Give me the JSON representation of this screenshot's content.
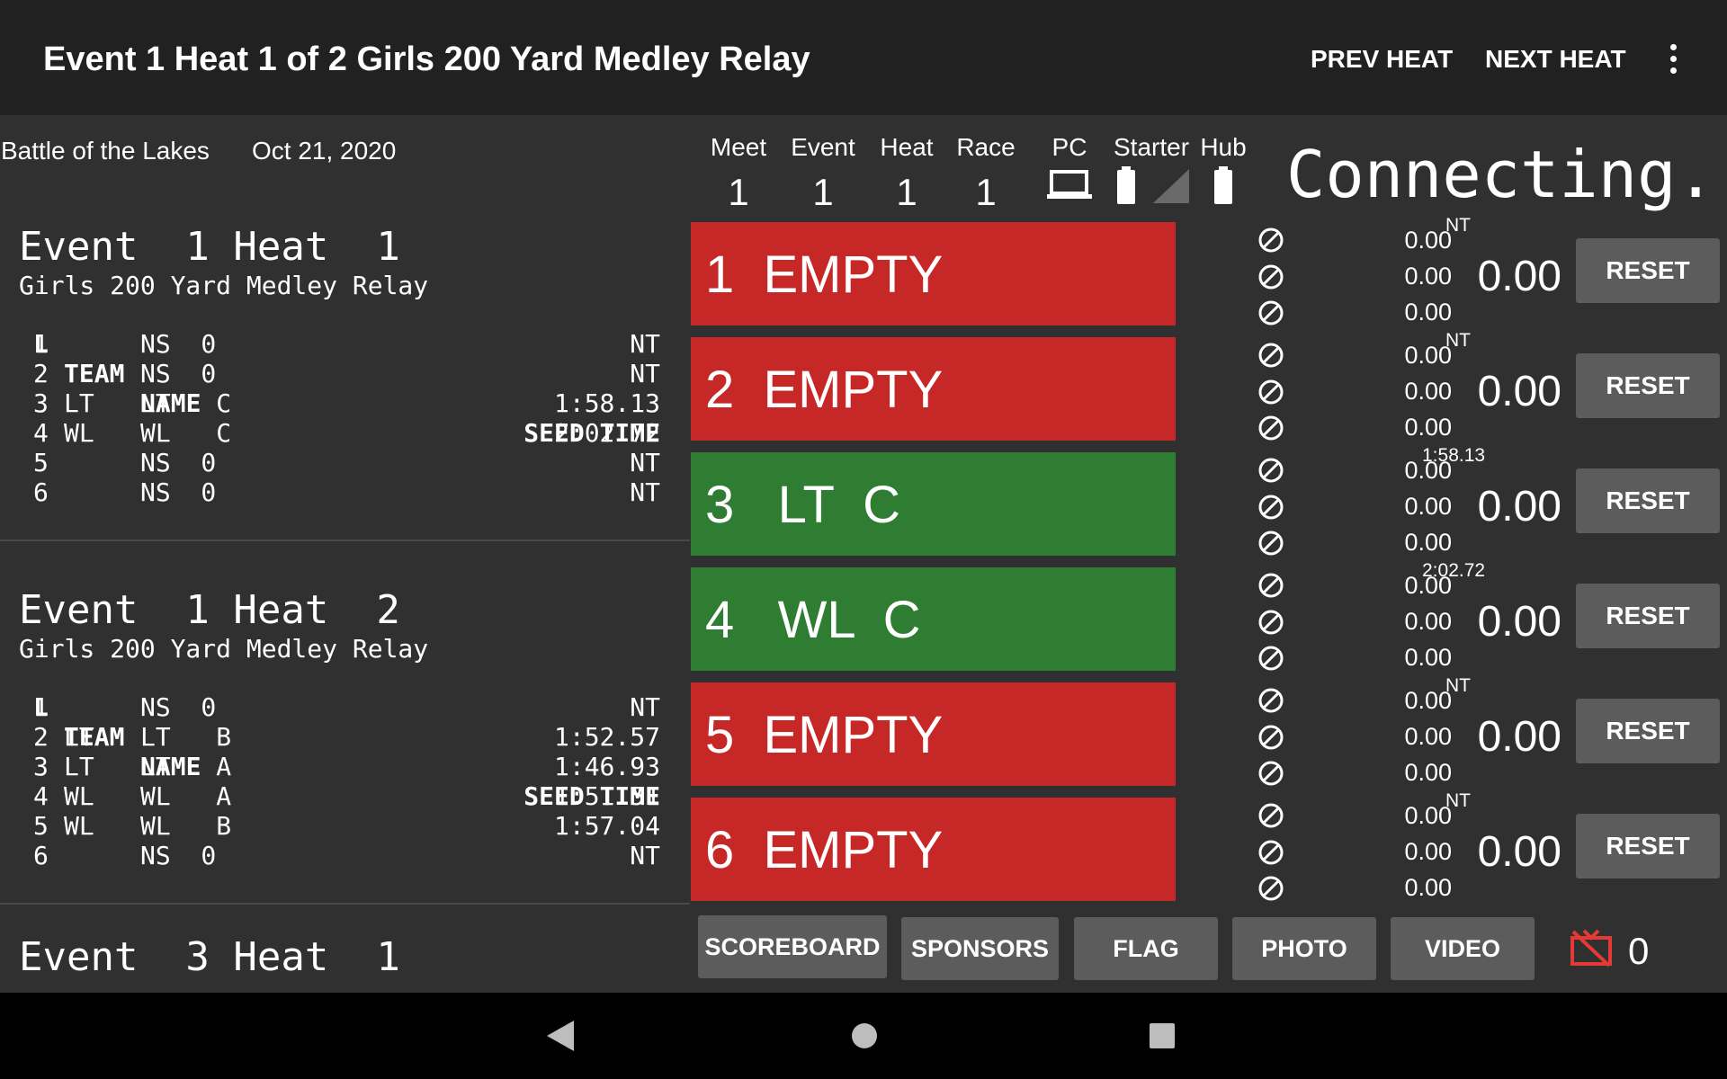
{
  "app": {
    "title": "Event 1 Heat 1 of 2 Girls 200 Yard Medley Relay",
    "prev_heat": "PREV HEAT",
    "next_heat": "NEXT HEAT",
    "more_icon": "more-vert-icon"
  },
  "meet": {
    "name": "Battle of the Lakes",
    "date": "Oct 21, 2020"
  },
  "status": {
    "columns": [
      {
        "label": "Meet",
        "value": "1"
      },
      {
        "label": "Event",
        "value": "1"
      },
      {
        "label": "Heat",
        "value": "1"
      },
      {
        "label": "Race",
        "value": "1"
      }
    ],
    "pc_label": "PC",
    "starter_label": "Starter",
    "hub_label": "Hub",
    "connection": "Connecting..."
  },
  "heats": [
    {
      "title": "Event  1 Heat  1",
      "subtitle": "Girls 200 Yard Medley Relay",
      "header": {
        "lane": "L",
        "team": "TEAM",
        "name": "NAME",
        "seed": "SEED TIME"
      },
      "rows": [
        {
          "lane": "1",
          "team": "",
          "name": "NS  0",
          "seed": "NT"
        },
        {
          "lane": "2",
          "team": "",
          "name": "NS  0",
          "seed": "NT"
        },
        {
          "lane": "3",
          "team": "LT",
          "name": "LT   C",
          "seed": "1:58.13"
        },
        {
          "lane": "4",
          "team": "WL",
          "name": "WL   C",
          "seed": "2:02.72"
        },
        {
          "lane": "5",
          "team": "",
          "name": "NS  0",
          "seed": "NT"
        },
        {
          "lane": "6",
          "team": "",
          "name": "NS  0",
          "seed": "NT"
        }
      ]
    },
    {
      "title": "Event  1 Heat  2",
      "subtitle": "Girls 200 Yard Medley Relay",
      "header": {
        "lane": "L",
        "team": "TEAM",
        "name": "NAME",
        "seed": "SEED TIME"
      },
      "rows": [
        {
          "lane": "1",
          "team": "",
          "name": "NS  0",
          "seed": "NT"
        },
        {
          "lane": "2",
          "team": "LT",
          "name": "LT   B",
          "seed": "1:52.57"
        },
        {
          "lane": "3",
          "team": "LT",
          "name": "LT   A",
          "seed": "1:46.93"
        },
        {
          "lane": "4",
          "team": "WL",
          "name": "WL   A",
          "seed": "1:51.51"
        },
        {
          "lane": "5",
          "team": "WL",
          "name": "WL   B",
          "seed": "1:57.04"
        },
        {
          "lane": "6",
          "team": "",
          "name": "NS  0",
          "seed": "NT"
        }
      ]
    },
    {
      "title": "Event  3 Heat  1"
    }
  ],
  "lanes": [
    {
      "label": "1  EMPTY",
      "state": "empty",
      "splits": [
        "0.00",
        "0.00",
        "0.00"
      ],
      "seed": "NT",
      "time": "0.00",
      "reset": "RESET"
    },
    {
      "label": "2  EMPTY",
      "state": "empty",
      "splits": [
        "0.00",
        "0.00",
        "0.00"
      ],
      "seed": "NT",
      "time": "0.00",
      "reset": "RESET"
    },
    {
      "label": "3   LT  C",
      "state": "filled",
      "splits": [
        "0.00",
        "0.00",
        "0.00"
      ],
      "seed": "1:58.13",
      "time": "0.00",
      "reset": "RESET"
    },
    {
      "label": "4   WL  C",
      "state": "filled",
      "splits": [
        "0.00",
        "0.00",
        "0.00"
      ],
      "seed": "2:02.72",
      "time": "0.00",
      "reset": "RESET"
    },
    {
      "label": "5  EMPTY",
      "state": "empty",
      "splits": [
        "0.00",
        "0.00",
        "0.00"
      ],
      "seed": "NT",
      "time": "0.00",
      "reset": "RESET"
    },
    {
      "label": "6  EMPTY",
      "state": "empty",
      "splits": [
        "0.00",
        "0.00",
        "0.00"
      ],
      "seed": "NT",
      "time": "0.00",
      "reset": "RESET"
    }
  ],
  "bottom": {
    "scoreboard": "SCOREBOARD",
    "sponsors": "SPONSORS",
    "flag": "FLAG",
    "photo": "PHOTO",
    "video": "VIDEO",
    "screen_count": "0"
  },
  "colors": {
    "empty_lane": "#c62828",
    "filled_lane": "#2e7d32",
    "cast_off": "#e53935"
  }
}
